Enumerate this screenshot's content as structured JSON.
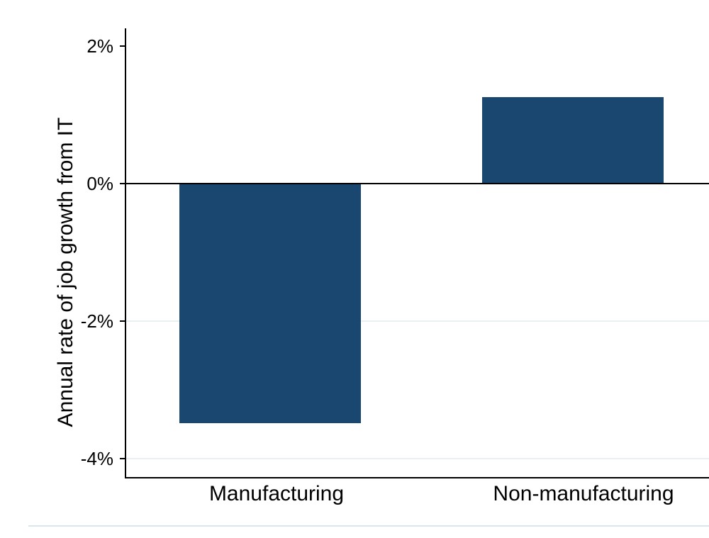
{
  "chart_data": {
    "type": "bar",
    "title": "",
    "ylabel": "Annual rate of job growth from IT",
    "xlabel": "",
    "categories": [
      "Manufacturing",
      "Non-manufacturing"
    ],
    "values": [
      -3.49,
      1.26
    ],
    "unit": "%",
    "ylim": [
      -4.3,
      2.3
    ],
    "yticks": [
      {
        "value": 2,
        "label": "2%",
        "gridline": false
      },
      {
        "value": 0,
        "label": "0%",
        "gridline": false
      },
      {
        "value": -2,
        "label": "-2%",
        "gridline": true
      },
      {
        "value": -4,
        "label": "-4%",
        "gridline": true
      }
    ],
    "zero_line": true,
    "legend": "none",
    "grid": "horizontal",
    "bar_color": "#1a476f",
    "gridline_color": "#e9f0f4",
    "axis_color": "#000000",
    "text_color": "#000000",
    "background_color": "#ffffff",
    "frame_border_color": "#d8e7ec"
  }
}
